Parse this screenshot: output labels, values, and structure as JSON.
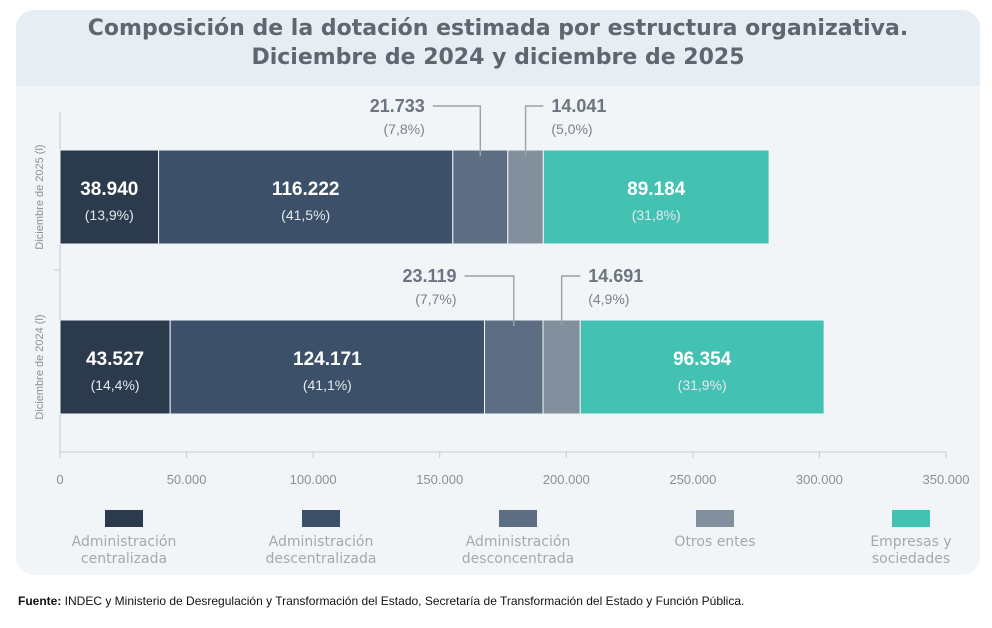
{
  "title": {
    "line1": "Composición de la dotación estimada por estructura organizativa.",
    "line2": "Diciembre de 2024 y diciembre de 2025"
  },
  "chart_data": {
    "type": "bar",
    "orientation": "horizontal",
    "stacked": true,
    "categories": [
      "Diciembre de 2025 (l)",
      "Diciembre de 2024 (l)"
    ],
    "series": [
      {
        "name": "Administración centralizada",
        "values": [
          38940,
          43527
        ],
        "labels": [
          "38.940",
          "43.527"
        ],
        "percents": [
          "(13,9%)",
          "(14,4%)"
        ],
        "color": "#2b3a4d"
      },
      {
        "name": "Administración descentralizada",
        "values": [
          116222,
          124171
        ],
        "labels": [
          "116.222",
          "124.171"
        ],
        "percents": [
          "(41,5%)",
          "(41,1%)"
        ],
        "color": "#3d5069"
      },
      {
        "name": "Administración desconcentrada",
        "values": [
          21733,
          23119
        ],
        "labels": [
          "21.733",
          "23.119"
        ],
        "percents": [
          "(7,8%)",
          "(7,7%)"
        ],
        "color": "#5d6e82"
      },
      {
        "name": "Otros entes",
        "values": [
          14041,
          14691
        ],
        "labels": [
          "14.041",
          "14.691"
        ],
        "percents": [
          "(5,0%)",
          "(4,9%)"
        ],
        "color": "#828f9d"
      },
      {
        "name": "Empresas y sociedades",
        "values": [
          89184,
          96354
        ],
        "labels": [
          "89.184",
          "96.354"
        ],
        "percents": [
          "(31,8%)",
          "(31,9%)"
        ],
        "color": "#43c2b3"
      }
    ],
    "xlim": [
      0,
      350000
    ],
    "xticks": [
      0,
      50000,
      100000,
      150000,
      200000,
      250000,
      300000,
      350000
    ],
    "xtick_labels": [
      "0",
      "50.000",
      "100.000",
      "150.000",
      "200.000",
      "250.000",
      "300.000",
      "350.000"
    ],
    "grid": false,
    "legend_position": "bottom"
  },
  "legend": [
    {
      "label": "Administración\ncentralizada",
      "color": "#2b3a4d"
    },
    {
      "label": "Administración\ndescentralizada",
      "color": "#3d5069"
    },
    {
      "label": "Administración\ndesconcentrada",
      "color": "#5d6e82"
    },
    {
      "label": "Otros entes",
      "color": "#828f9d"
    },
    {
      "label": "Empresas y\nsociedades",
      "color": "#43c2b3"
    }
  ],
  "source": {
    "label": "Fuente:",
    "text": " INDEC y Ministerio de Desregulación y Transformación del Estado, Secretaría de Transformación del Estado y Función Pública."
  }
}
